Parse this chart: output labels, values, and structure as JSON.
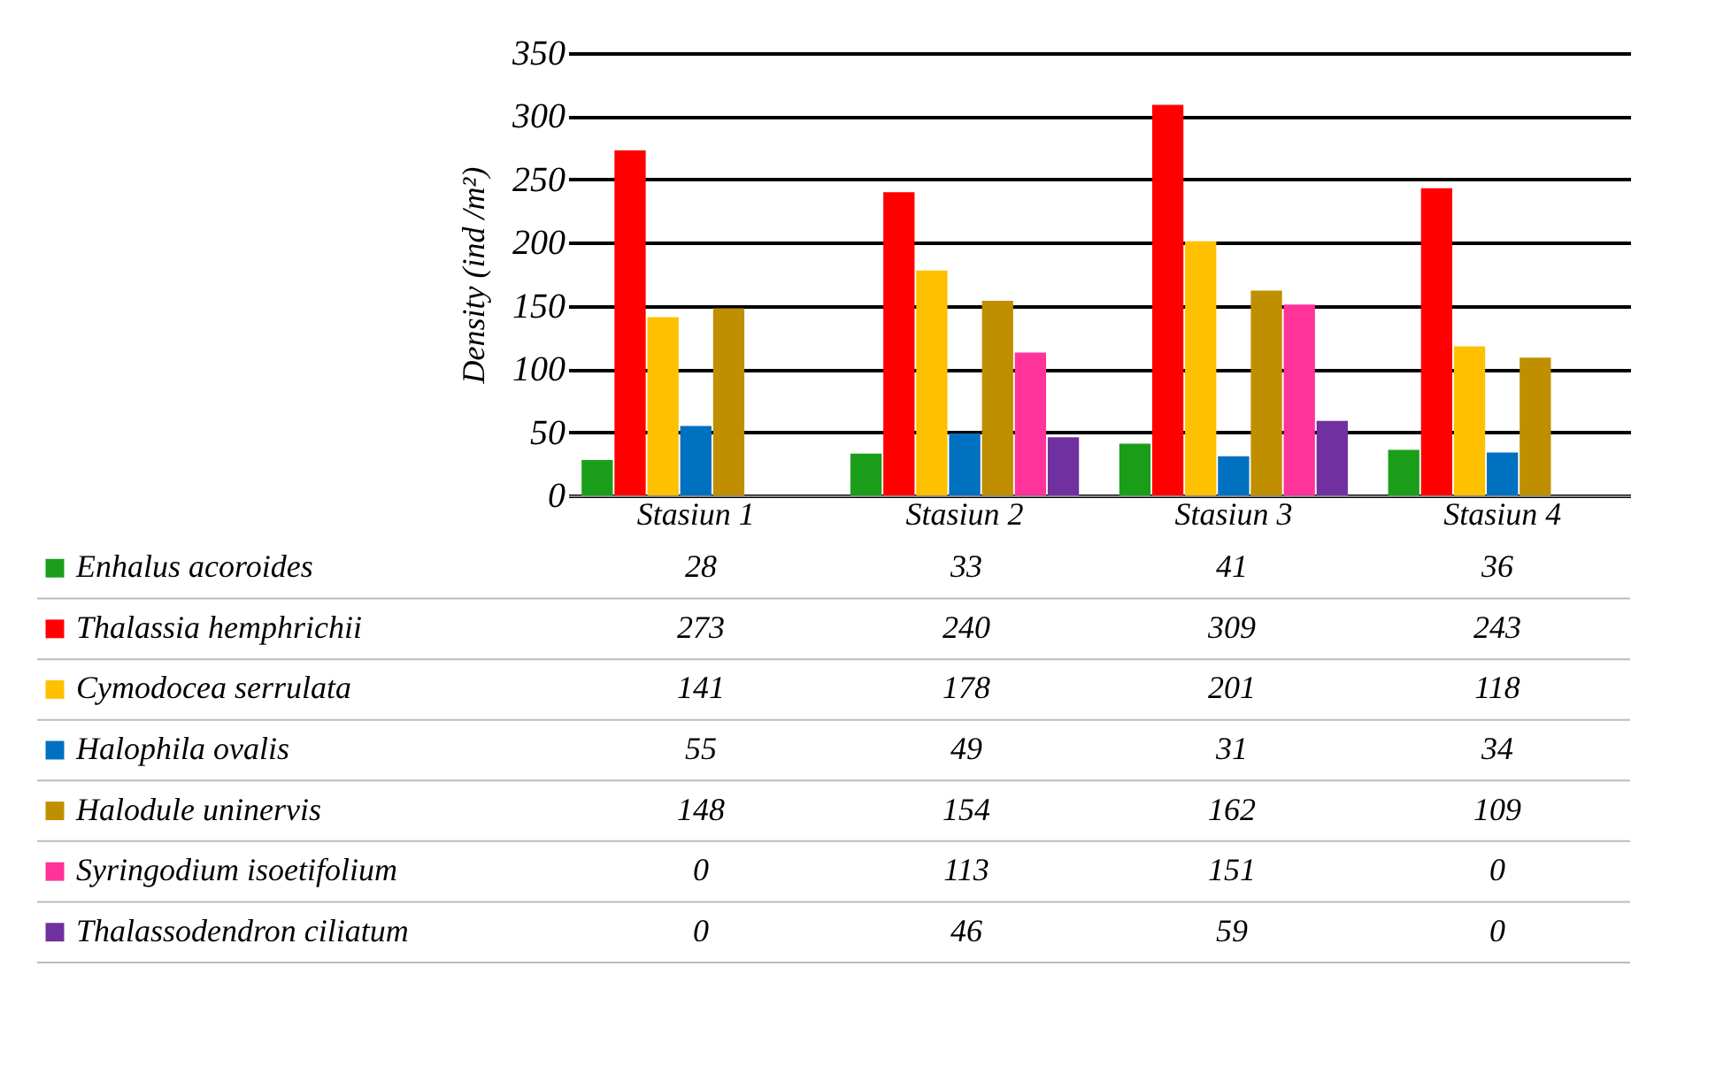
{
  "chart_data": {
    "type": "bar",
    "ylabel": "Density (ind /m²)",
    "categories": [
      "Stasiun 1",
      "Stasiun 2",
      "Stasiun 3",
      "Stasiun 4"
    ],
    "series": [
      {
        "name": "Enhalus acoroides",
        "color": "#1a9e1a",
        "values": [
          28,
          33,
          41,
          36
        ]
      },
      {
        "name": "Thalassia hemphrichii",
        "color": "#ff0000",
        "values": [
          273,
          240,
          309,
          243
        ]
      },
      {
        "name": "Cymodocea serrulata",
        "color": "#ffc000",
        "values": [
          141,
          178,
          201,
          118
        ]
      },
      {
        "name": "Halophila ovalis",
        "color": "#0070c0",
        "values": [
          55,
          49,
          31,
          34
        ]
      },
      {
        "name": "Halodule uninervis",
        "color": "#bf8f00",
        "values": [
          148,
          154,
          162,
          109
        ]
      },
      {
        "name": "Syringodium isoetifolium",
        "color": "#ff3399",
        "values": [
          0,
          113,
          151,
          0
        ]
      },
      {
        "name": "Thalassodendron ciliatum",
        "color": "#7030a0",
        "values": [
          0,
          46,
          59,
          0
        ]
      }
    ],
    "ylim": [
      0,
      350
    ],
    "yticks": [
      0,
      50,
      100,
      150,
      200,
      250,
      300,
      350
    ],
    "grid": "y",
    "data_labels": true,
    "legend": "bottom"
  }
}
